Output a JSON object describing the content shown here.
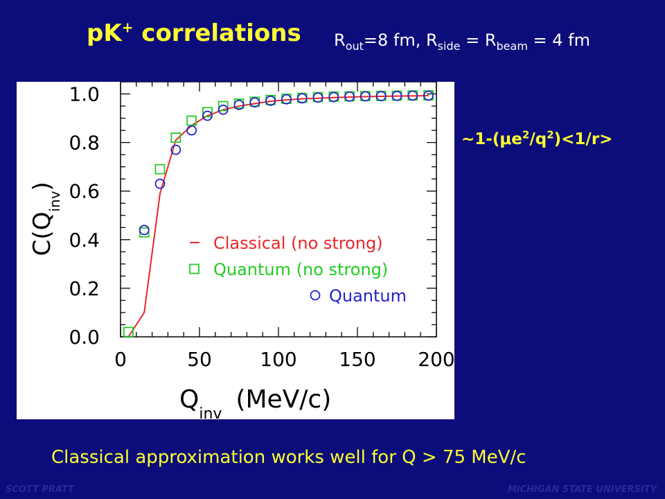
{
  "slide": {
    "title_main": "pK",
    "title_sup": "+",
    "title_rest": " correlations",
    "params": {
      "r1": "R",
      "r1_sub": "out",
      "r1_val": "=8 fm, ",
      "r2": "R",
      "r2_sub": "side",
      "r2_mid": " = ",
      "r3": "R",
      "r3_sub": "beam",
      "r3_val": " = 4 fm"
    },
    "formula": {
      "a": "~1-(",
      "mu": "μ",
      "b": "e",
      "b_sup": "2",
      "c": "/q",
      "c_sup": "2",
      "d": ")<1/r>"
    },
    "note": "Classical approximation works well for Q > 75 MeV/c",
    "footer_left": "SCOTT PRATT",
    "footer_right": "MICHIGAN STATE UNIVERSITY"
  },
  "colors": {
    "background": "#0c0c7a",
    "title": "#ffff33",
    "classical": "#e8262a",
    "quantum_no_strong": "#22cc22",
    "quantum": "#2222cc"
  },
  "chart_data": {
    "type": "line",
    "xlabel": "Q",
    "xlabel_sub": "inv",
    "xlabel_unit": "(MeV/c)",
    "ylabel": "C(Q",
    "ylabel_sub": "inv",
    "ylabel_close": ")",
    "xlim": [
      0,
      200
    ],
    "ylim": [
      0.0,
      1.05
    ],
    "xticks": [
      0,
      50,
      100,
      150,
      200
    ],
    "xtick_labels": [
      "0",
      "50",
      "100",
      "150",
      "200"
    ],
    "yticks": [
      0.0,
      0.2,
      0.4,
      0.6,
      0.8,
      1.0
    ],
    "ytick_labels": [
      "0.0",
      "0.2",
      "0.4",
      "0.6",
      "0.8",
      "1.0"
    ],
    "legend_position": "bottom-right",
    "series": [
      {
        "name": "Classical (no strong)",
        "style": "line",
        "x": [
          5,
          15,
          25,
          35,
          45,
          55,
          65,
          75,
          85,
          95,
          105,
          115,
          125,
          135,
          145,
          155,
          165,
          175,
          185,
          195
        ],
        "y": [
          0.0,
          0.1,
          0.59,
          0.81,
          0.87,
          0.91,
          0.935,
          0.95,
          0.96,
          0.97,
          0.975,
          0.98,
          0.982,
          0.985,
          0.987,
          0.989,
          0.99,
          0.991,
          0.992,
          0.993
        ]
      },
      {
        "name": "Quantum (no strong)",
        "style": "square",
        "x": [
          5,
          15,
          25,
          35,
          45,
          55,
          65,
          75,
          85,
          95,
          105,
          115,
          125,
          135,
          145,
          155,
          165,
          175,
          185,
          195
        ],
        "y": [
          0.02,
          0.43,
          0.69,
          0.82,
          0.89,
          0.925,
          0.95,
          0.96,
          0.968,
          0.975,
          0.98,
          0.984,
          0.987,
          0.989,
          0.99,
          0.991,
          0.992,
          0.993,
          0.994,
          0.994
        ]
      },
      {
        "name": "Quantum",
        "style": "circle",
        "x": [
          15,
          25,
          35,
          45,
          55,
          65,
          75,
          85,
          95,
          105,
          115,
          125,
          135,
          145,
          155,
          165,
          175,
          185,
          195
        ],
        "y": [
          0.44,
          0.63,
          0.77,
          0.85,
          0.91,
          0.935,
          0.955,
          0.965,
          0.972,
          0.978,
          0.982,
          0.985,
          0.987,
          0.989,
          0.99,
          0.991,
          0.992,
          0.993,
          0.993
        ]
      }
    ]
  }
}
